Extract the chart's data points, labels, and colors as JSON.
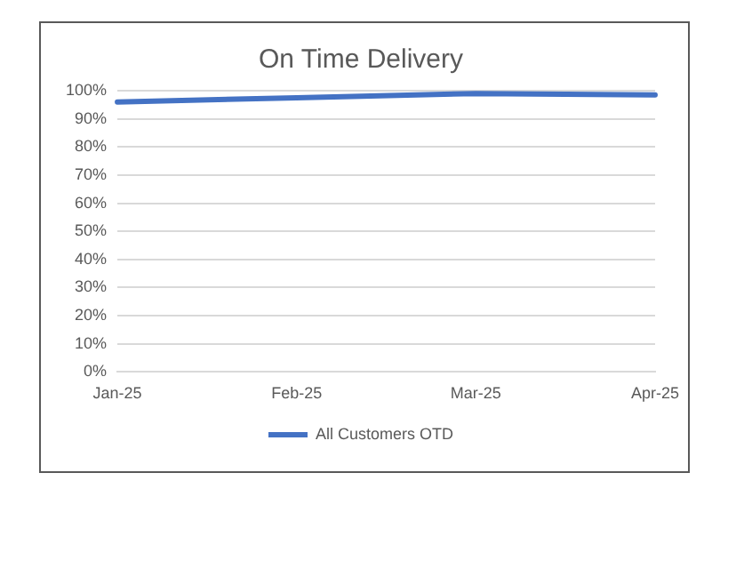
{
  "chart_data": {
    "type": "line",
    "title": "On Time Delivery",
    "categories": [
      "Jan-25",
      "Feb-25",
      "Mar-25",
      "Apr-25"
    ],
    "series": [
      {
        "name": "All Customers OTD",
        "color": "#4472c4",
        "values": [
          96,
          97.5,
          99,
          98.5
        ]
      }
    ],
    "ylim": [
      0,
      100
    ],
    "yticks": [
      {
        "value": 0,
        "label": "0%"
      },
      {
        "value": 10,
        "label": "10%"
      },
      {
        "value": 20,
        "label": "20%"
      },
      {
        "value": 30,
        "label": "30%"
      },
      {
        "value": 40,
        "label": "40%"
      },
      {
        "value": 50,
        "label": "50%"
      },
      {
        "value": 60,
        "label": "60%"
      },
      {
        "value": 70,
        "label": "70%"
      },
      {
        "value": 80,
        "label": "80%"
      },
      {
        "value": 90,
        "label": "90%"
      },
      {
        "value": 100,
        "label": "100%"
      }
    ],
    "grid": "y",
    "legend": "bottom",
    "marker": "none",
    "line_style": "solid"
  }
}
